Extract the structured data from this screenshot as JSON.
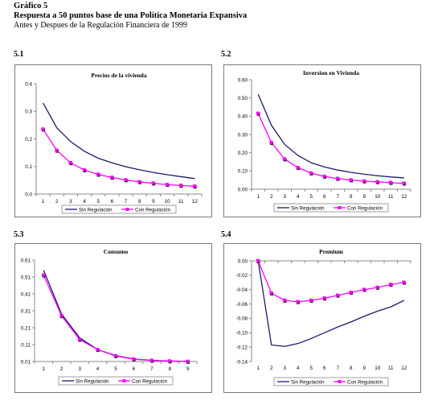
{
  "header": {
    "figure_label": "Gráfico 5",
    "title": "Respuesta  a   50   puntos base de una Política Monetaria Expansiva",
    "subtitle": "Antes y Despues de la Regulación Financiera de 1999"
  },
  "colors": {
    "sin": "#1a1a6e",
    "con": "#ff00ff",
    "marker_shadow": "#222222"
  },
  "legend_labels": {
    "sin": "Sin Regulación",
    "con": "Con Regulación"
  },
  "chart_data": [
    {
      "id": "c1",
      "number": "5.1",
      "type": "line",
      "title": "Precios de la vivienda",
      "x": [
        1,
        2,
        3,
        4,
        5,
        6,
        7,
        8,
        9,
        10,
        11,
        12
      ],
      "ylim": [
        0,
        0.4
      ],
      "yticks": [
        "0.0",
        "0.1",
        "0.2",
        "0.3",
        "0.4"
      ],
      "ytick_values": [
        0,
        0.1,
        0.2,
        0.3,
        0.4
      ],
      "series": [
        {
          "name": "Sin Regulación",
          "key": "sin",
          "values": [
            0.33,
            0.24,
            0.19,
            0.155,
            0.13,
            0.113,
            0.099,
            0.088,
            0.078,
            0.07,
            0.063,
            0.056
          ]
        },
        {
          "name": "Con Regulación",
          "key": "con",
          "values": [
            0.235,
            0.158,
            0.113,
            0.087,
            0.071,
            0.06,
            0.051,
            0.044,
            0.039,
            0.034,
            0.031,
            0.028
          ]
        }
      ]
    },
    {
      "id": "c2",
      "number": "5.2",
      "type": "line",
      "title": "Inversion en Vivienda",
      "x": [
        1,
        2,
        3,
        4,
        5,
        6,
        7,
        8,
        9,
        10,
        11,
        12
      ],
      "ylim": [
        0,
        0.6
      ],
      "yticks": [
        "0.00",
        "0.10",
        "0.20",
        "0.30",
        "0.40",
        "0.50",
        "0.60"
      ],
      "ytick_values": [
        0,
        0.1,
        0.2,
        0.3,
        0.4,
        0.5,
        0.6
      ],
      "series": [
        {
          "name": "Sin Regulación",
          "key": "sin",
          "values": [
            0.52,
            0.35,
            0.245,
            0.185,
            0.145,
            0.122,
            0.105,
            0.092,
            0.082,
            0.074,
            0.067,
            0.062
          ]
        },
        {
          "name": "Con Regulación",
          "key": "con",
          "values": [
            0.415,
            0.255,
            0.165,
            0.118,
            0.088,
            0.07,
            0.058,
            0.05,
            0.044,
            0.04,
            0.036,
            0.032
          ]
        }
      ]
    },
    {
      "id": "c3",
      "number": "5.3",
      "type": "line",
      "title": "Consumo",
      "x": [
        1,
        2,
        3,
        4,
        5,
        6,
        7,
        8,
        9
      ],
      "ylim": [
        0.01,
        0.61
      ],
      "yticks": [
        "0.01",
        "0.11",
        "0.21",
        "0.31",
        "0.41",
        "0.51",
        "0.61"
      ],
      "ytick_values": [
        0.01,
        0.11,
        0.21,
        0.31,
        0.41,
        0.51,
        0.61
      ],
      "series": [
        {
          "name": "Sin Regulación",
          "key": "sin",
          "values": [
            0.55,
            0.29,
            0.15,
            0.08,
            0.045,
            0.025,
            0.017,
            0.013,
            0.011
          ]
        },
        {
          "name": "Con Regulación",
          "key": "con",
          "values": [
            0.52,
            0.28,
            0.14,
            0.08,
            0.043,
            0.024,
            0.016,
            0.012,
            0.01
          ]
        }
      ]
    },
    {
      "id": "c4",
      "number": "5.4",
      "type": "line",
      "title": "Premium",
      "x": [
        1,
        2,
        3,
        4,
        5,
        6,
        7,
        8,
        9,
        10,
        11,
        12
      ],
      "ylim": [
        -0.14,
        0
      ],
      "yticks": [
        "0.00",
        "-0.02",
        "-0.04",
        "-0.06",
        "-0.08",
        "-0.10",
        "-0.12",
        "-0.14"
      ],
      "ytick_values": [
        0,
        -0.02,
        -0.04,
        -0.06,
        -0.08,
        -0.1,
        -0.12,
        -0.14
      ],
      "series": [
        {
          "name": "Sin Regulación",
          "key": "sin",
          "values": [
            0,
            -0.117,
            -0.119,
            -0.115,
            -0.108,
            -0.1,
            -0.092,
            -0.085,
            -0.077,
            -0.07,
            -0.064,
            -0.055
          ]
        },
        {
          "name": "Con Regulación",
          "key": "con",
          "values": [
            0,
            -0.045,
            -0.055,
            -0.057,
            -0.055,
            -0.052,
            -0.048,
            -0.044,
            -0.04,
            -0.037,
            -0.033,
            -0.03
          ]
        }
      ]
    }
  ]
}
